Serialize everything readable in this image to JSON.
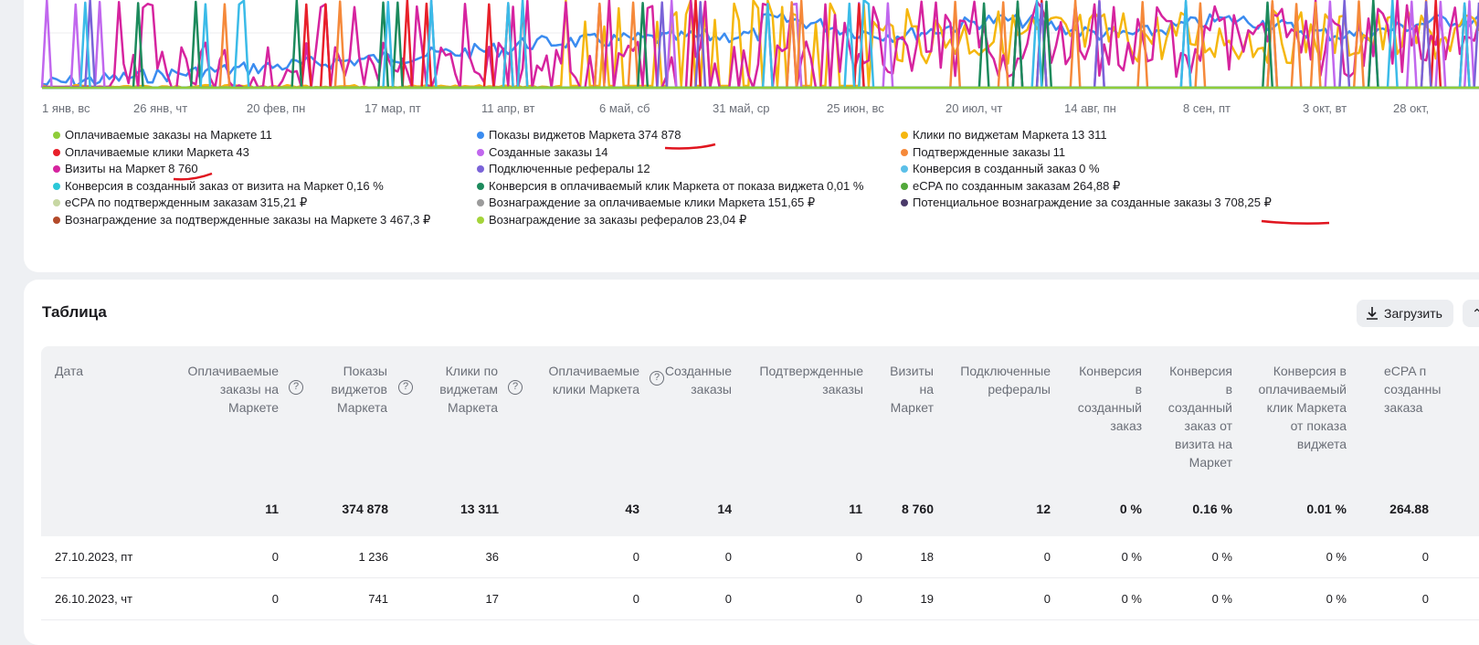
{
  "chart_data": {
    "type": "line",
    "x_ticks": [
      "1 янв, вс",
      "26 янв, чт",
      "20 фев, пн",
      "17 мар, пт",
      "11 апр, вт",
      "6 май, сб",
      "31 май, ср",
      "25 июн, вс",
      "20 июл, чт",
      "14 авг, пн",
      "8 сен, пт",
      "3 окт, вт",
      "28 окт,"
    ],
    "grid": true,
    "series_colors": {
      "visits": "#d6249f",
      "widget_shows": "#3b8cf0",
      "widget_clicks": "#f5b70f",
      "created_orders": "#c167ee",
      "confirmed_orders": "#f5893a",
      "paid_clicks": "#e8202a",
      "referrals": "#7a63d8",
      "conversion_click": "#1c8a5c",
      "conversion_created": "#3bbbe8",
      "paid_orders": "#8fcd3a"
    }
  },
  "legend": [
    {
      "label": "Оплачиваемые заказы на Маркете",
      "value": "11",
      "color": "#8fcd3a"
    },
    {
      "label": "Оплачиваемые клики Маркета",
      "value": "43",
      "color": "#e8202a"
    },
    {
      "label": "Визиты на Маркет",
      "value": "8 760",
      "color": "#d6249f"
    },
    {
      "label": "Конверсия в созданный заказ от визита на Маркет",
      "value": "0,16 %",
      "color": "#2bc8d8"
    },
    {
      "label": "eCPA по подтвержденным заказам",
      "value": "315,21 ₽",
      "color": "#c7d7a3"
    },
    {
      "label": "Вознаграждение за подтвержденные заказы на Маркете",
      "value": "3 467,3 ₽",
      "color": "#b34a2a"
    },
    {
      "label": "Показы виджетов Маркета",
      "value": "374 878",
      "color": "#3b8cf0"
    },
    {
      "label": "Созданные заказы",
      "value": "14",
      "color": "#c167ee"
    },
    {
      "label": "Подключенные рефералы",
      "value": "12",
      "color": "#7a63d8"
    },
    {
      "label": "Конверсия в оплачиваемый клик Маркета от показа виджета",
      "value": "0,01 %",
      "color": "#1c8a5c"
    },
    {
      "label": "Вознаграждение за оплачиваемые клики Маркета",
      "value": "151,65 ₽",
      "color": "#9b9b9b"
    },
    {
      "label": "Вознаграждение за заказы рефералов",
      "value": "23,04 ₽",
      "color": "#a4d43a"
    },
    {
      "label": "Клики по виджетам Маркета",
      "value": "13 311",
      "color": "#f5b70f"
    },
    {
      "label": "Подтвержденные заказы",
      "value": "11",
      "color": "#f5893a"
    },
    {
      "label": "Конверсия в созданный заказ",
      "value": "0 %",
      "color": "#5bbfe8"
    },
    {
      "label": "eCPA по созданным заказам",
      "value": "264,88 ₽",
      "color": "#52a83a"
    },
    {
      "label": "Потенциальное вознаграждение за созданные заказы",
      "value": "3 708,25 ₽",
      "color": "#4a3a6a"
    }
  ],
  "table": {
    "title": "Таблица",
    "download_label": "Загрузить",
    "headers": [
      {
        "lines": [
          "Дата"
        ]
      },
      {
        "lines": [
          "Оплачиваемые",
          "заказы на",
          "Маркете"
        ],
        "help": true
      },
      {
        "lines": [
          "Показы",
          "виджетов",
          "Маркета"
        ],
        "help": true
      },
      {
        "lines": [
          "Клики по",
          "виджетам",
          "Маркета"
        ],
        "help": true
      },
      {
        "lines": [
          "Оплачиваемые",
          "клики Маркета"
        ],
        "help": true
      },
      {
        "lines": [
          "Созданные",
          "заказы"
        ]
      },
      {
        "lines": [
          "Подтвержденные",
          "заказы"
        ]
      },
      {
        "lines": [
          "Визиты",
          "на",
          "Маркет"
        ]
      },
      {
        "lines": [
          "Подключенные",
          "рефералы"
        ]
      },
      {
        "lines": [
          "Конверсия",
          "в",
          "созданный",
          "заказ"
        ]
      },
      {
        "lines": [
          "Конверсия",
          "в",
          "созданный",
          "заказ от",
          "визита на",
          "Маркет"
        ]
      },
      {
        "lines": [
          "Конверсия в",
          "оплачиваемый",
          "клик Маркета",
          "от показа",
          "виджета"
        ]
      },
      {
        "lines": [
          "eCPA п",
          "созданны",
          "заказа"
        ]
      }
    ],
    "totals": [
      "",
      "11",
      "374 878",
      "13 311",
      "43",
      "14",
      "11",
      "8 760",
      "12",
      "0 %",
      "0.16 %",
      "0.01 %",
      "264.88"
    ],
    "rows": [
      [
        "27.10.2023, пт",
        "0",
        "1 236",
        "36",
        "0",
        "0",
        "0",
        "18",
        "0",
        "0 %",
        "0 %",
        "0 %",
        "0"
      ],
      [
        "26.10.2023, чт",
        "0",
        "741",
        "17",
        "0",
        "0",
        "0",
        "19",
        "0",
        "0 %",
        "0 %",
        "0 %",
        "0"
      ]
    ]
  }
}
